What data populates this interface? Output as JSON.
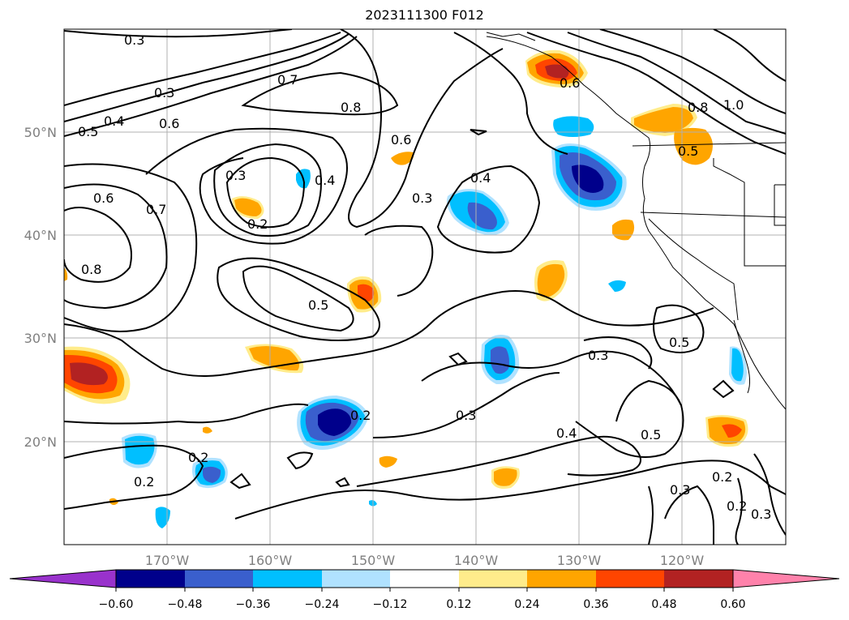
{
  "title": "2023111300 F012",
  "colors": {
    "contour": "#000000",
    "coast": "#000000",
    "grid": "#b0b0b0",
    "axis_label": "#7f7f7f"
  },
  "axes": {
    "lon_ticks": [
      "170°W",
      "160°W",
      "150°W",
      "140°W",
      "130°W",
      "120°W"
    ],
    "lat_ticks": [
      "50°N",
      "40°N",
      "30°N",
      "20°N"
    ]
  },
  "colorbar": {
    "colors": [
      "#9932cc",
      "#00008b",
      "#3a5fcd",
      "#00bfff",
      "#b0e2ff",
      "#ffffff",
      "#ffec8b",
      "#ffa500",
      "#ff4500",
      "#b22222",
      "#ff82ab"
    ],
    "ticks": [
      "−0.60",
      "−0.48",
      "−0.36",
      "−0.24",
      "−0.12",
      "0.12",
      "0.24",
      "0.36",
      "0.48",
      "0.60"
    ]
  },
  "contour_labels": [
    "0.3",
    "0.3",
    "0.4",
    "0.5",
    "0.6",
    "0.7",
    "0.8",
    "0.6",
    "0.3",
    "0.4",
    "0.3",
    "0.2",
    "0.6",
    "0.7",
    "0.8",
    "0.5",
    "0.4",
    "0.6",
    "0.8",
    "1.0",
    "0.3",
    "0.5",
    "0.3",
    "0.2",
    "0.4",
    "0.5",
    "0.5",
    "0.2",
    "0.2",
    "0.3",
    "0.2",
    "0.2",
    "0.3"
  ]
}
